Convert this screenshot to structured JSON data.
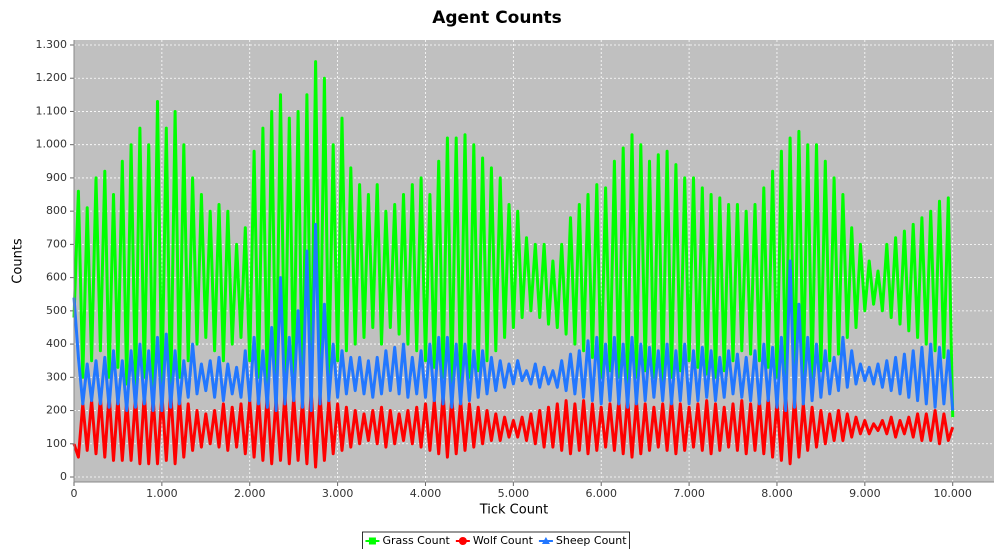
{
  "chart_data": {
    "type": "line",
    "title": "Agent Counts",
    "x_label": "Tick Count",
    "y_label": "Counts",
    "x": [
      0,
      50,
      100,
      150,
      200,
      250,
      300,
      350,
      400,
      450,
      500,
      550,
      600,
      650,
      700,
      750,
      800,
      850,
      900,
      950,
      1000,
      1050,
      1100,
      1150,
      1200,
      1250,
      1300,
      1350,
      1400,
      1450,
      1500,
      1550,
      1600,
      1650,
      1700,
      1750,
      1800,
      1850,
      1900,
      1950,
      2000,
      2050,
      2100,
      2150,
      2200,
      2250,
      2300,
      2350,
      2400,
      2450,
      2500,
      2550,
      2600,
      2650,
      2700,
      2750,
      2800,
      2850,
      2900,
      2950,
      3000,
      3050,
      3100,
      3150,
      3200,
      3250,
      3300,
      3350,
      3400,
      3450,
      3500,
      3550,
      3600,
      3650,
      3700,
      3750,
      3800,
      3850,
      3900,
      3950,
      4000,
      4050,
      4100,
      4150,
      4200,
      4250,
      4300,
      4350,
      4400,
      4450,
      4500,
      4550,
      4600,
      4650,
      4700,
      4750,
      4800,
      4850,
      4900,
      4950,
      5000,
      5050,
      5100,
      5150,
      5200,
      5250,
      5300,
      5350,
      5400,
      5450,
      5500,
      5550,
      5600,
      5650,
      5700,
      5750,
      5800,
      5850,
      5900,
      5950,
      6000,
      6050,
      6100,
      6150,
      6200,
      6250,
      6300,
      6350,
      6400,
      6450,
      6500,
      6550,
      6600,
      6650,
      6700,
      6750,
      6800,
      6850,
      6900,
      6950,
      7000,
      7050,
      7100,
      7150,
      7200,
      7250,
      7300,
      7350,
      7400,
      7450,
      7500,
      7550,
      7600,
      7650,
      7700,
      7750,
      7800,
      7850,
      7900,
      7950,
      8000,
      8050,
      8100,
      8150,
      8200,
      8250,
      8300,
      8350,
      8400,
      8450,
      8500,
      8550,
      8600,
      8650,
      8700,
      8750,
      8800,
      8850,
      8900,
      8950,
      9000,
      9050,
      9100,
      9150,
      9200,
      9250,
      9300,
      9350,
      9400,
      9450,
      9500,
      9550,
      9600,
      9650,
      9700,
      9750,
      9800,
      9850,
      9900,
      9950,
      10000
    ],
    "series": [
      {
        "name": "Grass Count",
        "color": "#00ff00",
        "values": [
          480,
          860,
          300,
          810,
          350,
          900,
          380,
          920,
          300,
          850,
          330,
          950,
          280,
          1000,
          260,
          1050,
          300,
          1000,
          250,
          1130,
          250,
          1050,
          230,
          1100,
          300,
          1000,
          350,
          900,
          400,
          850,
          420,
          800,
          380,
          820,
          350,
          800,
          400,
          700,
          420,
          750,
          350,
          980,
          300,
          1050,
          250,
          1100,
          220,
          1150,
          250,
          1080,
          280,
          1100,
          220,
          1150,
          230,
          1250,
          260,
          1200,
          300,
          1000,
          350,
          1080,
          380,
          930,
          400,
          880,
          420,
          850,
          450,
          880,
          400,
          800,
          450,
          820,
          430,
          850,
          400,
          880,
          380,
          900,
          350,
          850,
          330,
          950,
          300,
          1020,
          280,
          1020,
          270,
          1030,
          300,
          1000,
          320,
          960,
          350,
          930,
          380,
          900,
          420,
          820,
          450,
          800,
          480,
          720,
          500,
          700,
          480,
          700,
          460,
          650,
          450,
          700,
          430,
          780,
          400,
          820,
          380,
          850,
          360,
          880,
          300,
          870,
          320,
          950,
          300,
          990,
          280,
          1030,
          300,
          1000,
          320,
          950,
          300,
          970,
          280,
          980,
          300,
          940,
          320,
          900,
          350,
          900,
          330,
          870,
          310,
          850,
          300,
          840,
          320,
          820,
          350,
          820,
          380,
          800,
          370,
          820,
          350,
          870,
          330,
          920,
          300,
          980,
          280,
          1020,
          260,
          1040,
          290,
          1000,
          300,
          1000,
          320,
          950,
          350,
          900,
          370,
          850,
          420,
          750,
          450,
          700,
          500,
          650,
          520,
          620,
          500,
          700,
          480,
          720,
          460,
          740,
          440,
          760,
          420,
          780,
          400,
          800,
          380,
          830,
          360,
          840,
          180
        ]
      },
      {
        "name": "Wolf Count",
        "color": "#ff0000",
        "values": [
          100,
          60,
          220,
          80,
          230,
          70,
          240,
          60,
          250,
          50,
          240,
          50,
          230,
          50,
          240,
          40,
          250,
          40,
          240,
          40,
          250,
          50,
          260,
          40,
          240,
          60,
          220,
          80,
          200,
          90,
          190,
          100,
          200,
          90,
          220,
          80,
          210,
          90,
          220,
          70,
          230,
          60,
          240,
          50,
          250,
          40,
          240,
          50,
          250,
          40,
          240,
          50,
          230,
          40,
          260,
          30,
          250,
          50,
          230,
          70,
          220,
          80,
          210,
          90,
          200,
          100,
          190,
          110,
          200,
          100,
          210,
          90,
          200,
          100,
          190,
          110,
          200,
          100,
          210,
          90,
          220,
          80,
          230,
          70,
          250,
          60,
          240,
          70,
          230,
          80,
          220,
          90,
          210,
          100,
          200,
          110,
          190,
          110,
          180,
          120,
          170,
          120,
          180,
          110,
          190,
          100,
          200,
          90,
          210,
          90,
          220,
          80,
          230,
          70,
          220,
          80,
          230,
          70,
          220,
          80,
          210,
          90,
          220,
          80,
          230,
          70,
          240,
          60,
          230,
          70,
          220,
          80,
          210,
          90,
          220,
          80,
          230,
          70,
          220,
          80,
          210,
          90,
          220,
          80,
          230,
          70,
          220,
          80,
          210,
          90,
          220,
          80,
          230,
          70,
          220,
          80,
          230,
          70,
          240,
          60,
          230,
          50,
          250,
          40,
          240,
          60,
          220,
          80,
          210,
          90,
          200,
          100,
          190,
          110,
          200,
          110,
          190,
          120,
          180,
          130,
          170,
          130,
          160,
          140,
          170,
          130,
          180,
          120,
          170,
          130,
          180,
          120,
          190,
          110,
          190,
          110,
          200,
          100,
          190,
          110,
          150
        ]
      },
      {
        "name": "Sheep Count",
        "color": "#2277ff",
        "values": [
          540,
          360,
          220,
          340,
          230,
          350,
          220,
          360,
          210,
          380,
          220,
          350,
          200,
          380,
          210,
          400,
          220,
          380,
          200,
          420,
          200,
          430,
          210,
          380,
          220,
          350,
          240,
          400,
          250,
          340,
          260,
          350,
          240,
          360,
          230,
          340,
          250,
          330,
          240,
          380,
          230,
          420,
          220,
          380,
          210,
          450,
          200,
          600,
          220,
          420,
          230,
          500,
          210,
          680,
          200,
          760,
          220,
          520,
          230,
          400,
          240,
          380,
          250,
          360,
          260,
          360,
          250,
          350,
          240,
          360,
          250,
          380,
          260,
          390,
          250,
          400,
          240,
          360,
          250,
          380,
          240,
          400,
          230,
          420,
          220,
          420,
          210,
          400,
          220,
          400,
          230,
          380,
          240,
          380,
          250,
          360,
          260,
          350,
          270,
          340,
          280,
          350,
          290,
          320,
          280,
          340,
          270,
          330,
          280,
          320,
          270,
          350,
          260,
          370,
          250,
          380,
          240,
          410,
          230,
          420,
          220,
          400,
          230,
          420,
          220,
          400,
          210,
          420,
          220,
          400,
          230,
          390,
          240,
          380,
          230,
          400,
          220,
          380,
          230,
          400,
          220,
          380,
          230,
          390,
          240,
          380,
          230,
          360,
          240,
          380,
          250,
          370,
          240,
          360,
          230,
          380,
          220,
          400,
          230,
          390,
          210,
          420,
          200,
          650,
          210,
          520,
          220,
          420,
          230,
          400,
          240,
          380,
          250,
          360,
          260,
          420,
          270,
          380,
          280,
          340,
          290,
          330,
          280,
          340,
          270,
          350,
          260,
          360,
          250,
          370,
          240,
          380,
          230,
          390,
          220,
          400,
          210,
          390,
          220,
          380,
          200
        ]
      }
    ],
    "xlim": [
      0,
      10470
    ],
    "ylim": [
      -15,
      1315
    ],
    "xticks": [
      0,
      {
        "value": 1000,
        "label": "1.000"
      },
      {
        "value": 2000,
        "label": "2.000"
      },
      {
        "value": 3000,
        "label": "3.000"
      },
      {
        "value": 4000,
        "label": "4.000"
      },
      {
        "value": 5000,
        "label": "5.000"
      },
      {
        "value": 6000,
        "label": "6.000"
      },
      {
        "value": 7000,
        "label": "7.000"
      },
      {
        "value": 8000,
        "label": "8.000"
      },
      {
        "value": 9000,
        "label": "9.000"
      },
      {
        "value": 10000,
        "label": "10.000"
      }
    ],
    "yticks": [
      0,
      100,
      200,
      300,
      400,
      500,
      600,
      700,
      800,
      900,
      {
        "value": 1000,
        "label": "1.000"
      },
      {
        "value": 1100,
        "label": "1.100"
      },
      {
        "value": 1200,
        "label": "1.200"
      },
      {
        "value": 1300,
        "label": "1.300"
      }
    ],
    "grid": true,
    "legend": "bottom"
  }
}
